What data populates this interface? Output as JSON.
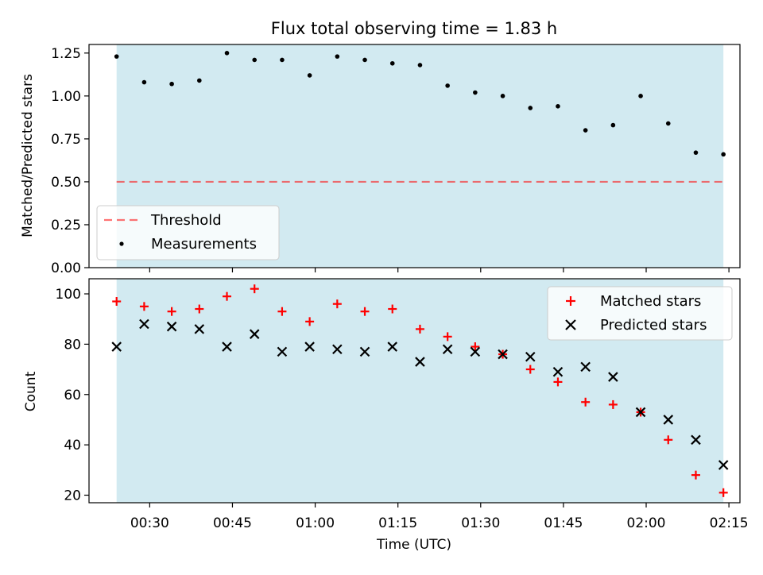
{
  "figure_title": "Flux total observing time = 1.83 h",
  "colors": {
    "shade": "#add8e6",
    "threshold": "#ff0000",
    "matched": "#ff0000",
    "predicted": "#000000",
    "measurements": "#000000"
  },
  "chart_data": [
    {
      "type": "scatter",
      "title": "Flux total observing time = 1.83 h",
      "ylabel": "Matched/Predicted stars",
      "xlabel": "",
      "ylim": [
        0,
        1.3
      ],
      "yticks": [
        "0.00",
        "0.25",
        "0.50",
        "0.75",
        "1.00",
        "1.25"
      ],
      "shaded_span": [
        "00:24",
        "02:14"
      ],
      "grid": false,
      "legend_position": "lower-left",
      "series": [
        {
          "name": "Threshold",
          "kind": "dashed-line",
          "value": 0.5,
          "x": [
            "00:24",
            "02:14"
          ]
        },
        {
          "name": "Measurements",
          "kind": "points",
          "marker": "dot",
          "x": [
            "00:24",
            "00:29",
            "00:34",
            "00:39",
            "00:44",
            "00:49",
            "00:54",
            "00:59",
            "01:04",
            "01:09",
            "01:14",
            "01:19",
            "01:24",
            "01:29",
            "01:34",
            "01:39",
            "01:44",
            "01:49",
            "01:54",
            "01:59",
            "02:04",
            "02:09",
            "02:14"
          ],
          "y": [
            1.23,
            1.08,
            1.07,
            1.09,
            1.25,
            1.21,
            1.21,
            1.12,
            1.23,
            1.21,
            1.19,
            1.18,
            1.06,
            1.02,
            1.0,
            0.93,
            0.94,
            0.8,
            0.83,
            1.0,
            0.84,
            0.67,
            0.66
          ]
        }
      ]
    },
    {
      "type": "scatter",
      "title": "",
      "ylabel": "Count",
      "xlabel": "Time (UTC)",
      "ylim": [
        17,
        106
      ],
      "yticks": [
        "20",
        "40",
        "60",
        "80",
        "100"
      ],
      "xticks": [
        "00:30",
        "00:45",
        "01:00",
        "01:15",
        "01:30",
        "01:45",
        "02:00",
        "02:15"
      ],
      "xlim": [
        "00:19",
        "02:17"
      ],
      "shaded_span": [
        "00:24",
        "02:14"
      ],
      "grid": false,
      "legend_position": "upper-right",
      "series": [
        {
          "name": "Matched stars",
          "marker": "plus",
          "x": [
            "00:24",
            "00:29",
            "00:34",
            "00:39",
            "00:44",
            "00:49",
            "00:54",
            "00:59",
            "01:04",
            "01:09",
            "01:14",
            "01:19",
            "01:24",
            "01:29",
            "01:34",
            "01:39",
            "01:44",
            "01:49",
            "01:54",
            "01:59",
            "02:04",
            "02:09",
            "02:14"
          ],
          "y": [
            97,
            95,
            93,
            94,
            99,
            102,
            93,
            89,
            96,
            93,
            94,
            86,
            83,
            79,
            76,
            70,
            65,
            57,
            56,
            53,
            42,
            28,
            21
          ]
        },
        {
          "name": "Predicted stars",
          "marker": "x",
          "x": [
            "00:24",
            "00:29",
            "00:34",
            "00:39",
            "00:44",
            "00:49",
            "00:54",
            "00:59",
            "01:04",
            "01:09",
            "01:14",
            "01:19",
            "01:24",
            "01:29",
            "01:34",
            "01:39",
            "01:44",
            "01:49",
            "01:54",
            "01:59",
            "02:04",
            "02:09",
            "02:14"
          ],
          "y": [
            79,
            88,
            87,
            86,
            79,
            84,
            77,
            79,
            78,
            77,
            79,
            73,
            78,
            77,
            76,
            75,
            69,
            71,
            67,
            53,
            50,
            42,
            32
          ]
        }
      ]
    }
  ]
}
